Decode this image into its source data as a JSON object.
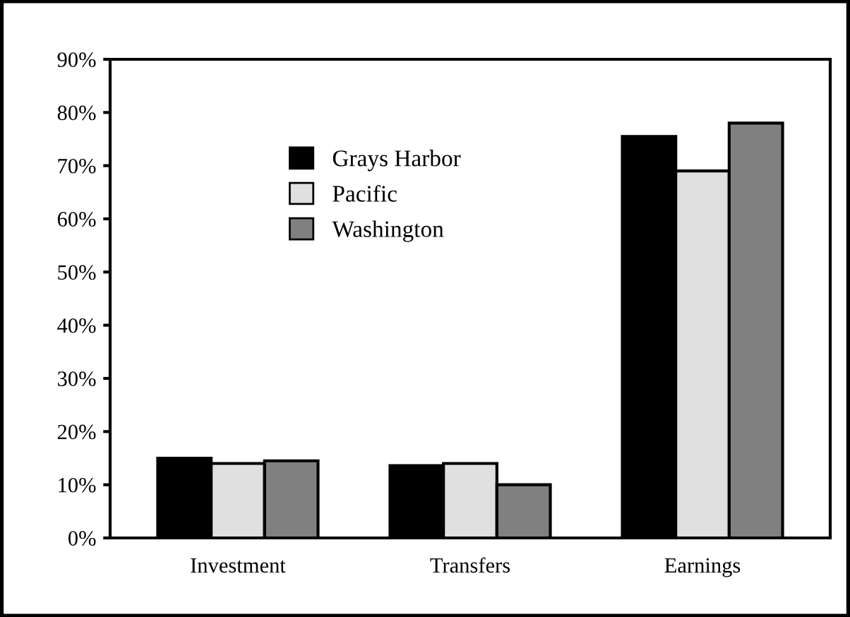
{
  "chart_data": {
    "type": "bar",
    "categories": [
      "Investment",
      "Transfers",
      "Earnings"
    ],
    "series": [
      {
        "name": "Grays Harbor",
        "color": "#000000",
        "values": [
          15,
          13.6,
          75.5
        ]
      },
      {
        "name": "Pacific",
        "color": "#e0e0e0",
        "values": [
          14,
          14,
          69
        ]
      },
      {
        "name": "Washington",
        "color": "#808080",
        "values": [
          14.5,
          10,
          78
        ]
      }
    ],
    "ylim": [
      0,
      90
    ],
    "yticks": [
      {
        "value": 0,
        "label": "0%"
      },
      {
        "value": 10,
        "label": "10%"
      },
      {
        "value": 20,
        "label": "20%"
      },
      {
        "value": 30,
        "label": "30%"
      },
      {
        "value": 40,
        "label": "40%"
      },
      {
        "value": 50,
        "label": "50%"
      },
      {
        "value": 60,
        "label": "60%"
      },
      {
        "value": 70,
        "label": "70%"
      },
      {
        "value": 80,
        "label": "80%"
      },
      {
        "value": 90,
        "label": "90%"
      }
    ],
    "grid": false,
    "legend": "top left"
  }
}
